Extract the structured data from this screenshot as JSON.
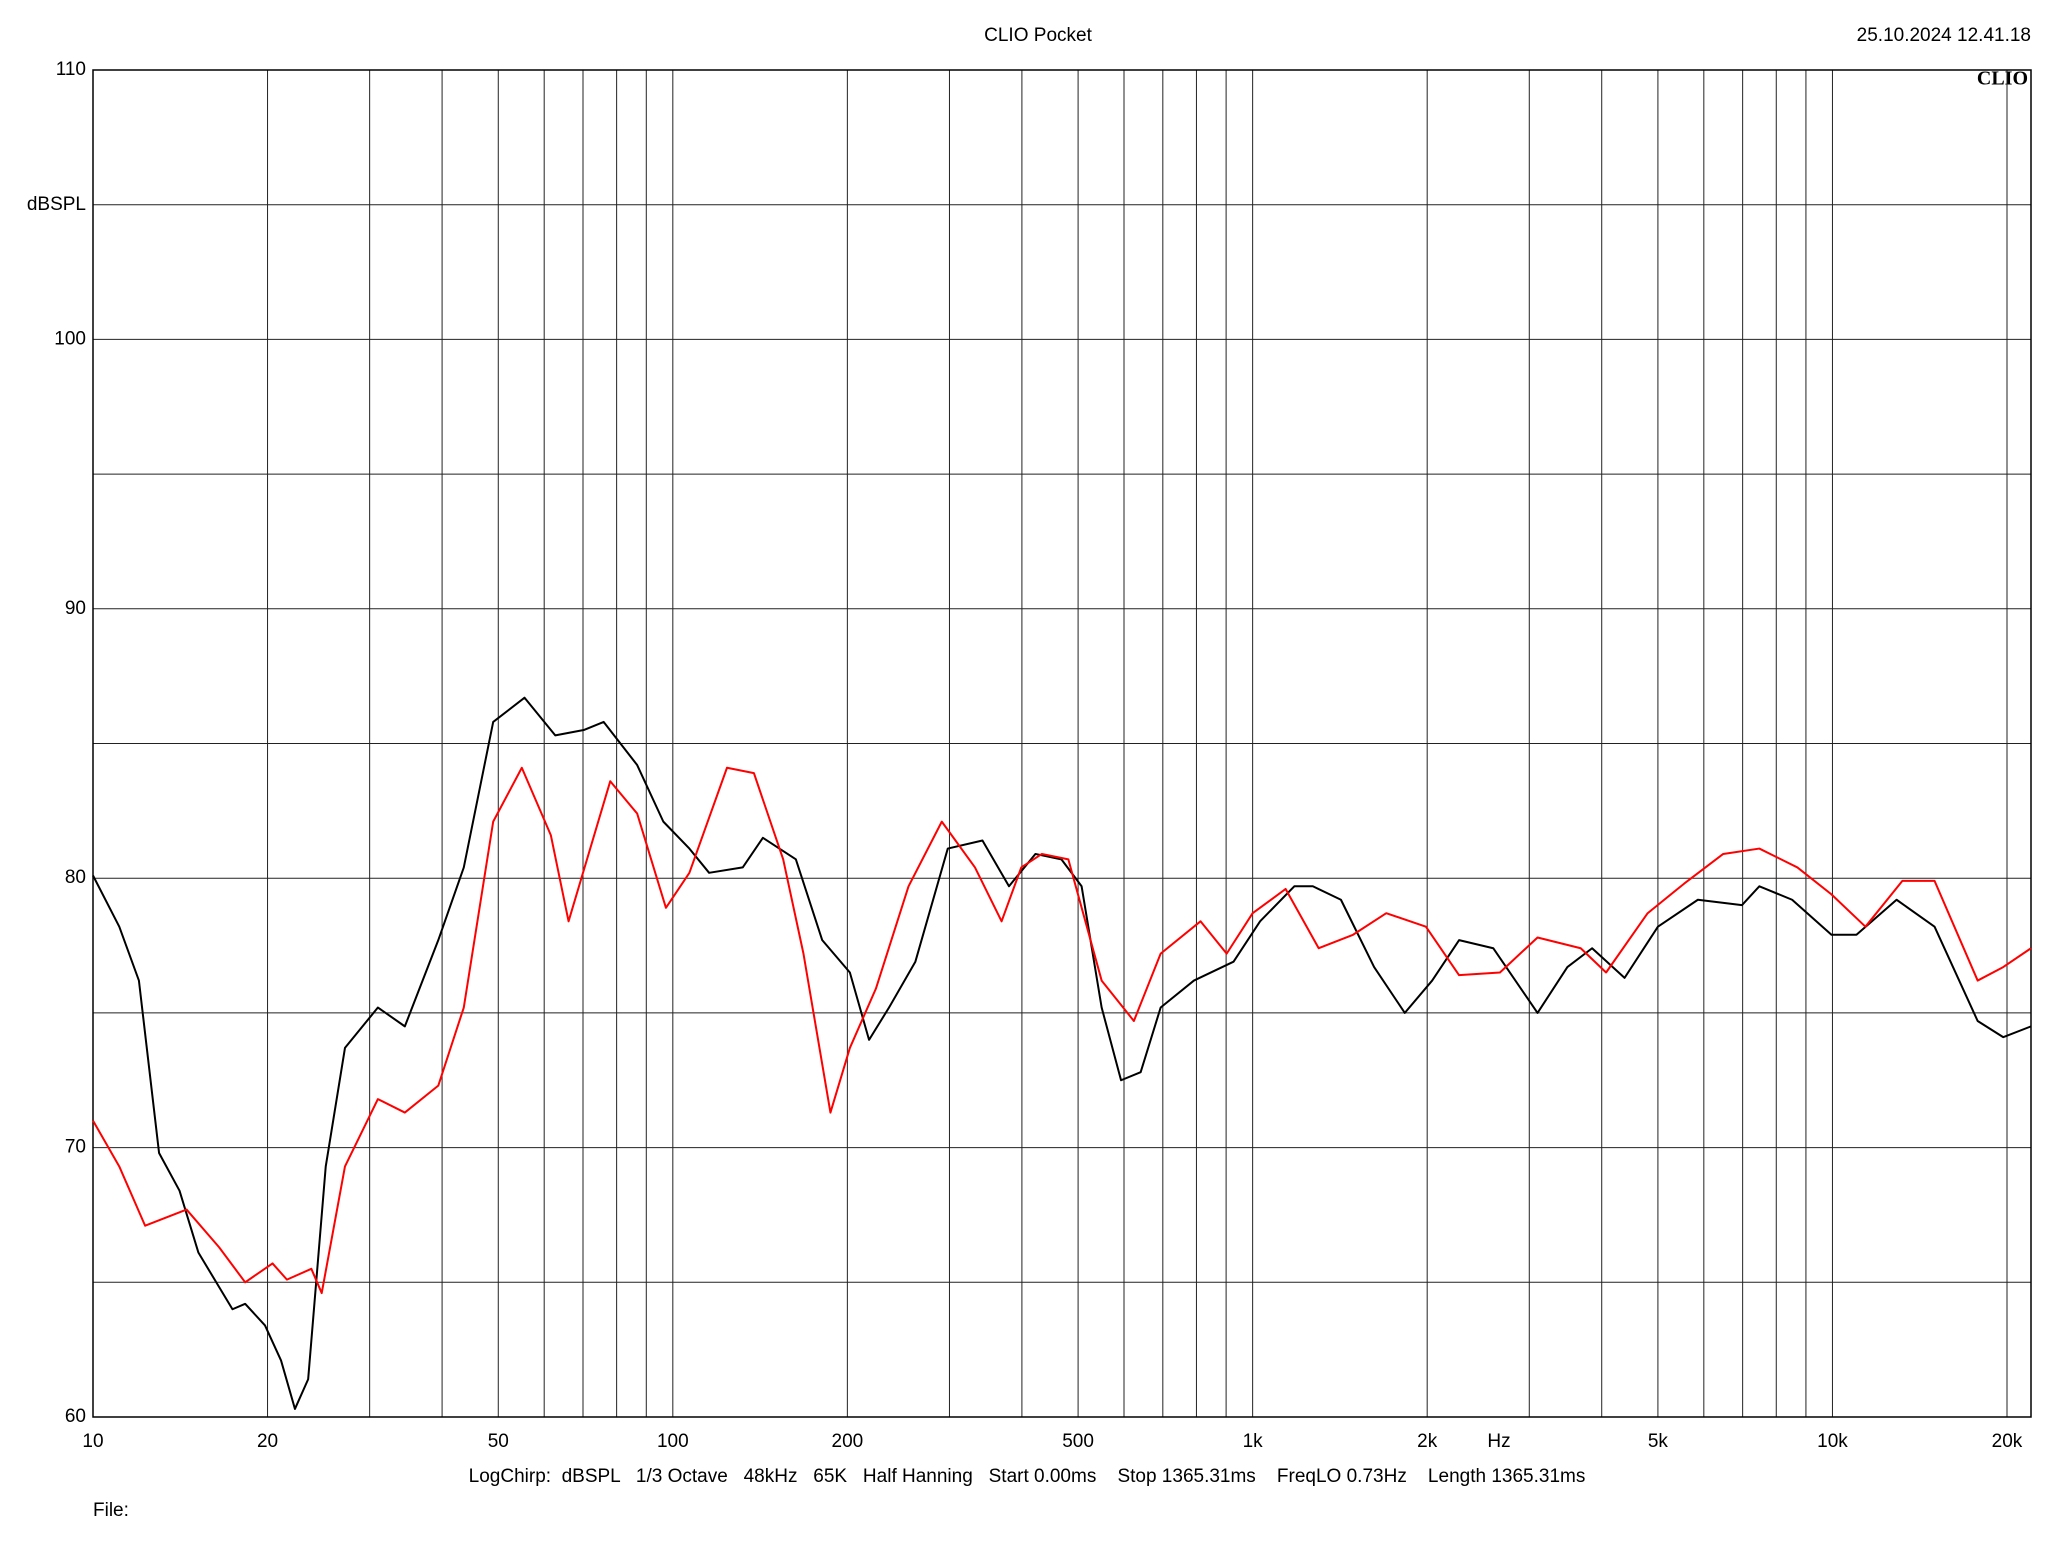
{
  "chart_data": {
    "type": "line",
    "title": "CLIO Pocket",
    "timestamp": "25.10.2024 12.41.18",
    "logo": "CLIO",
    "y_label": "dBSPL",
    "x_label": "Hz",
    "footer": "LogChirp:  dBSPL   1/3 Octave   48kHz   65K   Half Hanning   Start 0.00ms    Stop 1365.31ms    FreqLO 0.73Hz    Length 1365.31ms",
    "file_label": "File:",
    "xscale": "log",
    "xlim": [
      10,
      22000
    ],
    "ylim": [
      60,
      110
    ],
    "xticks": [
      10,
      20,
      50,
      100,
      200,
      500,
      {
        "value": 1000,
        "label": "1k"
      },
      {
        "value": 2000,
        "label": "2k"
      },
      {
        "value": 5000,
        "label": "5k"
      },
      {
        "value": 10000,
        "label": "10k"
      },
      {
        "value": 20000,
        "label": "20k"
      }
    ],
    "xminor": [
      30,
      40,
      60,
      70,
      80,
      90,
      300,
      400,
      600,
      700,
      800,
      900,
      3000,
      4000,
      6000,
      7000,
      8000,
      9000
    ],
    "yticks": [
      60,
      70,
      80,
      90,
      100,
      110
    ],
    "yminor": [
      65,
      75,
      85,
      95,
      105
    ],
    "grid": true,
    "series": [
      {
        "name": "Black trace",
        "color": "#000000",
        "x": [
          10,
          11.1,
          12,
          13,
          14.1,
          15.2,
          17.4,
          18.3,
          19.8,
          21.1,
          22.3,
          23.5,
          25.2,
          27.2,
          31,
          34.5,
          39.4,
          43.6,
          49,
          55.5,
          62.7,
          70.2,
          76,
          86.8,
          96.3,
          106.8,
          115.5,
          132,
          143,
          163,
          181,
          202,
          218,
          236,
          262,
          298,
          342,
          380,
          422,
          468,
          507,
          549,
          593,
          641,
          694,
          792,
          927,
          1030,
          1180,
          1270,
          1420,
          1620,
          1830,
          2040,
          2270,
          2600,
          3100,
          3490,
          3850,
          4380,
          5000,
          5860,
          6980,
          7480,
          8520,
          9960,
          11000,
          12900,
          15000,
          17800,
          19700,
          22000
        ],
        "values": [
          80.1,
          78.2,
          76.2,
          69.8,
          68.4,
          66.1,
          64.0,
          64.2,
          63.4,
          62.1,
          60.3,
          61.4,
          69.3,
          73.7,
          75.2,
          74.5,
          77.7,
          80.4,
          85.8,
          86.7,
          85.3,
          85.5,
          85.8,
          84.2,
          82.1,
          81.1,
          80.2,
          80.4,
          81.5,
          80.7,
          77.7,
          76.5,
          74.0,
          75.2,
          76.9,
          81.1,
          81.4,
          79.7,
          80.9,
          80.7,
          79.7,
          75.2,
          72.5,
          72.8,
          75.2,
          76.2,
          76.9,
          78.4,
          79.7,
          79.7,
          79.2,
          76.7,
          75.0,
          76.2,
          77.7,
          77.4,
          75.0,
          76.7,
          77.4,
          76.3,
          78.2,
          79.2,
          79.0,
          79.7,
          79.2,
          77.9,
          77.9,
          79.2,
          78.2,
          74.7,
          74.1,
          74.5
        ]
      },
      {
        "name": "Red trace",
        "color": "#ff0000",
        "x": [
          10,
          11.1,
          12.3,
          14.5,
          16.5,
          18.3,
          20.4,
          21.6,
          23.8,
          24.8,
          27.2,
          31,
          34.5,
          39.4,
          43.6,
          49,
          54.9,
          61.6,
          66.1,
          78,
          86.8,
          97.3,
          106.8,
          124,
          138,
          155,
          168,
          187,
          202,
          224,
          255,
          291,
          332,
          369,
          399,
          433,
          481,
          549,
          624,
          694,
          813,
          902,
          1000,
          1140,
          1300,
          1490,
          1700,
          1990,
          2270,
          2670,
          3100,
          3680,
          4070,
          4800,
          5550,
          6480,
          7480,
          8700,
          9960,
          11400,
          13200,
          15000,
          17800,
          19700,
          22000
        ],
        "values": [
          71.0,
          69.3,
          67.1,
          67.7,
          66.3,
          65.0,
          65.7,
          65.1,
          65.5,
          64.6,
          69.3,
          71.8,
          71.3,
          72.3,
          75.2,
          82.1,
          84.1,
          81.6,
          78.4,
          83.6,
          82.4,
          78.9,
          80.2,
          84.1,
          83.9,
          80.7,
          77.2,
          71.3,
          73.7,
          75.9,
          79.7,
          82.1,
          80.4,
          78.4,
          80.4,
          80.9,
          80.7,
          76.2,
          74.7,
          77.2,
          78.4,
          77.2,
          78.7,
          79.6,
          77.4,
          77.9,
          78.7,
          78.2,
          76.4,
          76.5,
          77.8,
          77.4,
          76.5,
          78.7,
          79.8,
          80.9,
          81.1,
          80.4,
          79.4,
          78.2,
          79.9,
          79.9,
          76.2,
          76.7,
          77.4
        ]
      }
    ]
  }
}
